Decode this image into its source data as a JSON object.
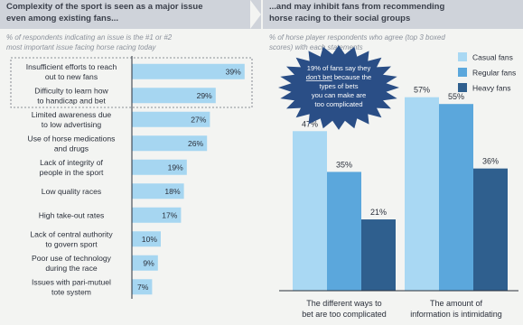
{
  "left": {
    "title": "Complexity of the sport is seen as a major issue\neven among existing fans...",
    "subtitle": "% of respondents indicating an issue is the #1 or #2\nmost important issue facing horse racing today"
  },
  "right": {
    "title": "...and may inhibit fans from recommending\nhorse racing to their social groups",
    "subtitle": "% of horse player respondents who agree (top 3 boxed\nscores) with each statements",
    "callout": [
      "19% of fans say they",
      "don't bet because the",
      "types of bets",
      "you can make are",
      "too complicated"
    ]
  },
  "colors": {
    "header_bg": "#cfd3da",
    "light_bar": "#a6d6f1",
    "casual": "#a9d8f3",
    "regular": "#5ba7dc",
    "heavy": "#2f5f8e",
    "burst": "#2a4e86"
  },
  "chart_data": [
    {
      "type": "bar",
      "orientation": "horizontal",
      "categories": [
        "Insufficient efforts to reach\nout to new fans",
        "Difficulty to learn how\nto handicap and bet",
        "Limited awareness due\nto low advertising",
        "Use of horse medications\nand drugs",
        "Lack of integrity of\npeople in the sport",
        "Low quality races",
        "High take-out rates",
        "Lack of central authority\nto govern sport",
        "Poor use of technology\nduring the race",
        "Issues with pari-mutuel\ntote system"
      ],
      "values": [
        39,
        29,
        27,
        26,
        19,
        18,
        17,
        10,
        9,
        7
      ],
      "value_labels": [
        "39%",
        "29%",
        "27%",
        "26%",
        "19%",
        "18%",
        "17%",
        "10%",
        "9%",
        "7%"
      ],
      "highlighted": [
        0,
        1
      ]
    },
    {
      "type": "bar",
      "categories": [
        "The different ways to\nbet are too complicated",
        "The amount of\ninformation is intimidating"
      ],
      "series": [
        {
          "name": "Casual fans",
          "values": [
            47,
            57
          ]
        },
        {
          "name": "Regular fans",
          "values": [
            35,
            55
          ]
        },
        {
          "name": "Heavy fans",
          "values": [
            21,
            36
          ]
        }
      ],
      "value_labels": [
        [
          "47%",
          "57%"
        ],
        [
          "35%",
          "55%"
        ],
        [
          "21%",
          "36%"
        ]
      ],
      "legend": "top-right"
    }
  ]
}
